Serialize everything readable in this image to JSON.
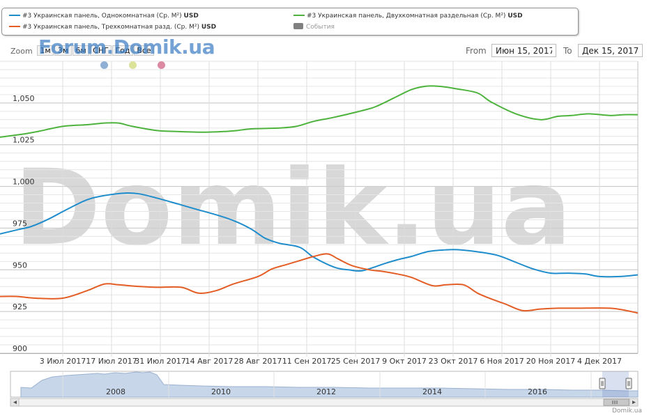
{
  "legend": {
    "items": [
      {
        "label": "#3 Украинская панель, Однокомнатная (Ср. М²)",
        "currency": "USD",
        "color": "#1f8dcc"
      },
      {
        "label": "#3 Украинская панель, Двухкомнатная раздельная (Ср. М²)",
        "currency": "USD",
        "color": "#4db33d"
      },
      {
        "label": "#3 Украинская панель, Трехкомнатная разд. (Ср. М²)",
        "currency": "USD",
        "color": "#e35d25"
      }
    ],
    "events_label": "События",
    "events_color": "#808080"
  },
  "zoom": {
    "label": "Zoom",
    "buttons": [
      "1м",
      "3м",
      "6м",
      "СНГ",
      "Год",
      "Все"
    ]
  },
  "watermark_top": "Forum.Domik.ua",
  "watermark_big": "Domik.ua",
  "flag_dots": [
    {
      "color": "#8fb0d4"
    },
    {
      "color": "#dbe39a"
    },
    {
      "color": "#dc8aa2"
    }
  ],
  "range": {
    "from_label": "From",
    "from_value": "Июн 15, 2017",
    "to_label": "To",
    "to_value": "Дек 15, 2017"
  },
  "chart_data": {
    "type": "line",
    "ylim": [
      900,
      1075
    ],
    "y_ticks": [
      900,
      925,
      950,
      975,
      1000,
      1025,
      1050
    ],
    "y_tick_labels": [
      "900",
      "925",
      "950",
      "975",
      "1,000",
      "1,025",
      "1,050"
    ],
    "x_range": [
      0,
      183
    ],
    "x_ticks": [
      {
        "day": 18,
        "label": "3 Июл 2017"
      },
      {
        "day": 32,
        "label": "17 Июл 2017"
      },
      {
        "day": 46,
        "label": "31 Июл 2017"
      },
      {
        "day": 60,
        "label": "14 Авг 2017"
      },
      {
        "day": 74,
        "label": "28 Авг 2017"
      },
      {
        "day": 88,
        "label": "11 Сен 2017"
      },
      {
        "day": 102,
        "label": "25 Сен 2017"
      },
      {
        "day": 116,
        "label": "9 Окт 2017"
      },
      {
        "day": 130,
        "label": "23 Окт 2017"
      },
      {
        "day": 144,
        "label": "6 Ноя 2017"
      },
      {
        "day": 158,
        "label": "20 Ноя 2017"
      },
      {
        "day": 172,
        "label": "4 Дек 2017"
      }
    ],
    "series": [
      {
        "name": "#3 Украинская панель, Двухкомнатная раздельная (Ср. М²)",
        "color": "#4db33d",
        "x": [
          0,
          7,
          11,
          18,
          25,
          30,
          34,
          38,
          45,
          50,
          58,
          65,
          68,
          72,
          80,
          85,
          90,
          96,
          105,
          108,
          113,
          118,
          122,
          126,
          131,
          137,
          141,
          148,
          155,
          160,
          164,
          169,
          175,
          179,
          183
        ],
        "y": [
          1029.5,
          1031.5,
          1033,
          1036,
          1037,
          1038,
          1038,
          1036,
          1033.5,
          1033,
          1032.5,
          1033,
          1033.5,
          1034.5,
          1035,
          1036,
          1039,
          1041.5,
          1046,
          1048,
          1053,
          1058,
          1060,
          1060,
          1058.5,
          1056,
          1050.5,
          1043.5,
          1040,
          1042,
          1042.5,
          1043.5,
          1042.5,
          1043,
          1043
        ]
      },
      {
        "name": "#3 Украинская панель, Однокомнатная (Ср. М²)",
        "color": "#1f8dcc",
        "x": [
          0,
          5,
          9,
          14,
          19,
          25,
          30,
          36,
          40,
          45,
          51,
          56,
          62,
          67,
          72,
          76,
          80,
          86,
          90,
          96,
          100,
          104,
          110,
          114,
          118,
          123,
          128,
          132,
          138,
          143,
          148,
          153,
          158,
          163,
          168,
          172,
          178,
          183
        ],
        "y": [
          971.5,
          974,
          976,
          980.5,
          986,
          992,
          994.5,
          996,
          995.5,
          993,
          989.5,
          986.5,
          983,
          979.5,
          974.5,
          969,
          966,
          963.5,
          957.5,
          951.5,
          950,
          949.5,
          953.5,
          956,
          958,
          961,
          962,
          962,
          960.5,
          958.5,
          954.5,
          950.5,
          948,
          948,
          947.5,
          946,
          946,
          947
        ]
      },
      {
        "name": "#3 Украинская панель, Трехкомнатная разд. (Ср. М²)",
        "color": "#e35d25",
        "x": [
          0,
          5,
          10,
          18,
          25,
          30,
          34,
          40,
          45,
          52,
          57,
          62,
          67,
          74,
          78,
          82,
          86,
          90,
          94,
          97,
          101,
          106,
          110,
          114,
          118,
          124,
          128,
          133,
          137,
          141,
          145,
          150,
          155,
          160,
          165,
          175,
          181,
          183
        ],
        "y": [
          934,
          934,
          933,
          933,
          937.5,
          941.5,
          941,
          940,
          939.5,
          939.5,
          936,
          937.5,
          941.5,
          946,
          950.5,
          953,
          955.5,
          958,
          959.5,
          956.5,
          952.5,
          950,
          949,
          947.5,
          945.5,
          940.5,
          941,
          941,
          936,
          932.5,
          929.5,
          925.5,
          926.5,
          927,
          927,
          927,
          925,
          924
        ]
      }
    ],
    "navigator": {
      "x_labels": [
        "2008",
        "2010",
        "2012",
        "2014",
        "2016"
      ]
    }
  },
  "credit": "Domik.ua"
}
